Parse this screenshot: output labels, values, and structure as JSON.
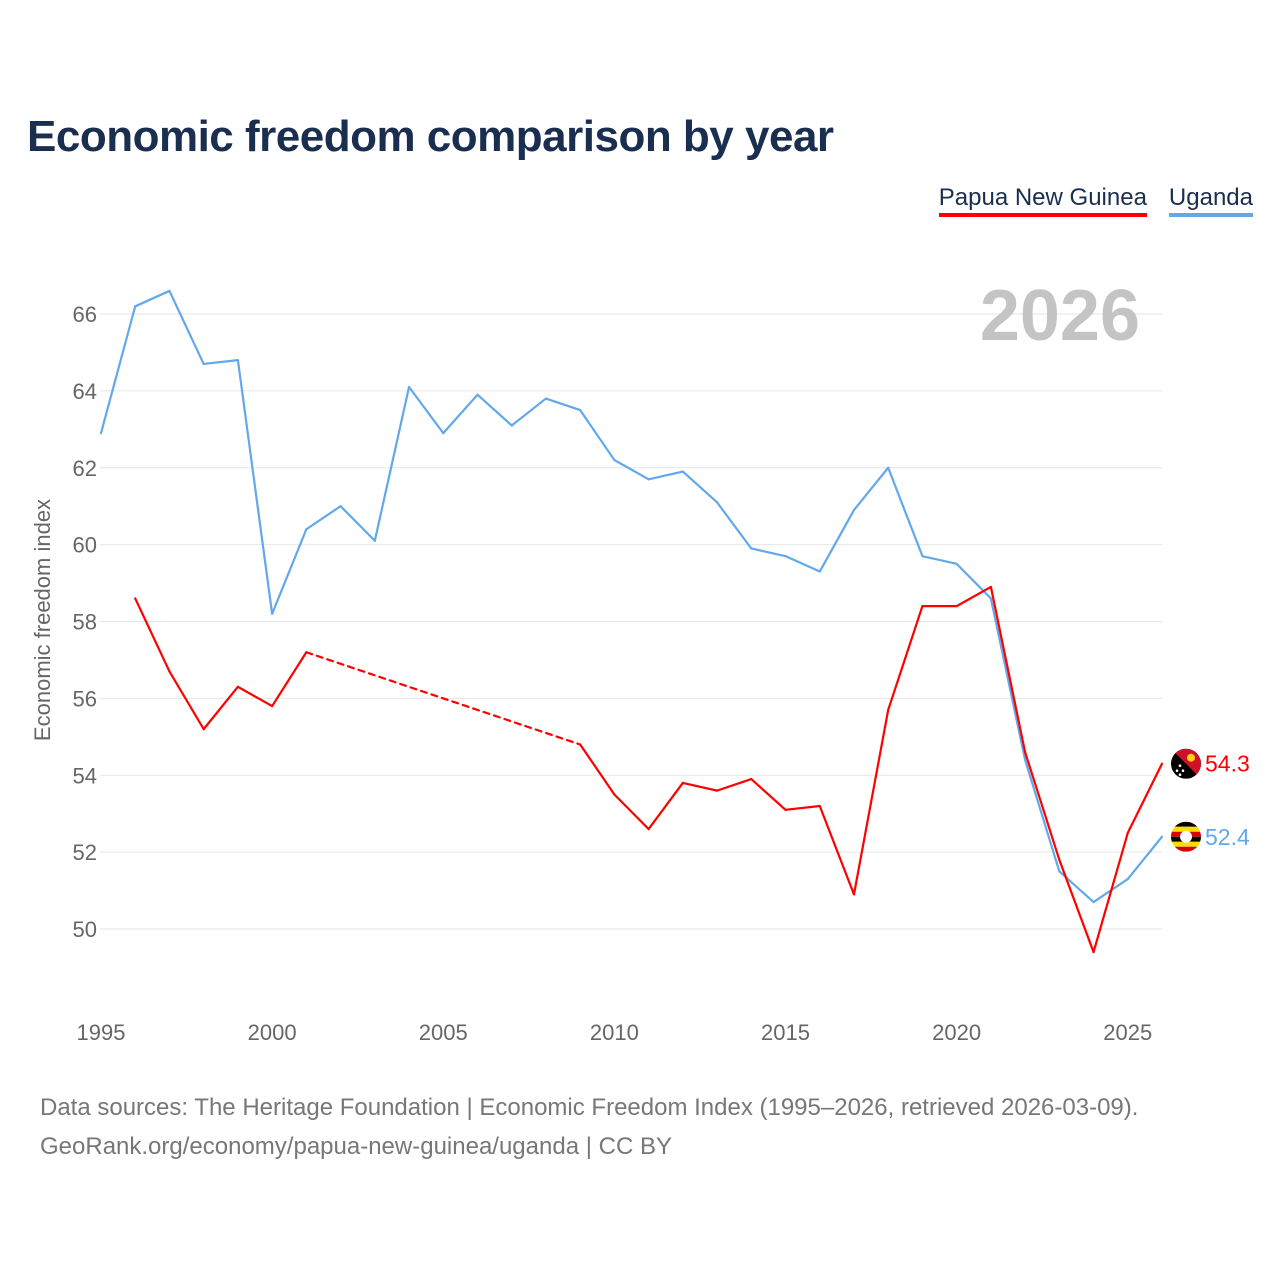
{
  "chart_data": {
    "type": "line",
    "title": "Economic freedom comparison by year",
    "xlabel": "",
    "ylabel": "Economic freedom index",
    "year_label": "2026",
    "xlim": [
      1995,
      2026
    ],
    "ylim": [
      48,
      68
    ],
    "x_ticks": [
      1995,
      2000,
      2005,
      2010,
      2015,
      2020,
      2025
    ],
    "y_ticks": [
      50,
      52,
      54,
      56,
      58,
      60,
      62,
      64,
      66
    ],
    "grid": true,
    "legend_position": "top-right",
    "series": [
      {
        "name": "Papua New Guinea",
        "color": "#ff0000",
        "end_label": "54.3",
        "flag": "papua-new-guinea-flag",
        "points": [
          [
            1996,
            58.6
          ],
          [
            1997,
            56.7
          ],
          [
            1998,
            55.2
          ],
          [
            1999,
            56.3
          ],
          [
            2000,
            55.8
          ],
          [
            2001,
            57.2
          ],
          [
            2009,
            54.8
          ],
          [
            2010,
            53.5
          ],
          [
            2011,
            52.6
          ],
          [
            2012,
            53.8
          ],
          [
            2013,
            53.6
          ],
          [
            2014,
            53.9
          ],
          [
            2015,
            53.1
          ],
          [
            2016,
            53.2
          ],
          [
            2017,
            50.9
          ],
          [
            2018,
            55.7
          ],
          [
            2019,
            58.4
          ],
          [
            2020,
            58.4
          ],
          [
            2021,
            58.9
          ],
          [
            2022,
            54.6
          ],
          [
            2023,
            51.8
          ],
          [
            2024,
            49.4
          ],
          [
            2025,
            52.5
          ],
          [
            2026,
            54.3
          ]
        ],
        "dashed_gaps": [
          [
            2001,
            2009
          ]
        ]
      },
      {
        "name": "Uganda",
        "color": "#62a8ea",
        "end_label": "52.4",
        "flag": "uganda-flag",
        "points": [
          [
            1995,
            62.9
          ],
          [
            1996,
            66.2
          ],
          [
            1997,
            66.6
          ],
          [
            1998,
            64.7
          ],
          [
            1999,
            64.8
          ],
          [
            2000,
            58.2
          ],
          [
            2001,
            60.4
          ],
          [
            2002,
            61.0
          ],
          [
            2003,
            60.1
          ],
          [
            2004,
            64.1
          ],
          [
            2005,
            62.9
          ],
          [
            2006,
            63.9
          ],
          [
            2007,
            63.1
          ],
          [
            2008,
            63.8
          ],
          [
            2009,
            63.5
          ],
          [
            2010,
            62.2
          ],
          [
            2011,
            61.7
          ],
          [
            2012,
            61.9
          ],
          [
            2013,
            61.1
          ],
          [
            2014,
            59.9
          ],
          [
            2015,
            59.7
          ],
          [
            2016,
            59.3
          ],
          [
            2017,
            60.9
          ],
          [
            2018,
            62.0
          ],
          [
            2019,
            59.7
          ],
          [
            2020,
            59.5
          ],
          [
            2021,
            58.6
          ],
          [
            2022,
            54.4
          ],
          [
            2023,
            51.5
          ],
          [
            2024,
            50.7
          ],
          [
            2025,
            51.3
          ],
          [
            2026,
            52.4
          ]
        ],
        "dashed_gaps": []
      }
    ]
  },
  "footer": {
    "line1": "Data sources: The Heritage Foundation | Economic Freedom Index (1995–2026, retrieved 2026-03-09).",
    "line2": "GeoRank.org/economy/papua-new-guinea/uganda | CC BY"
  }
}
